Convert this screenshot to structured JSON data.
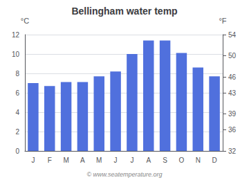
{
  "chart_data": {
    "type": "bar",
    "title": "Bellingham water temp",
    "categories": [
      "J",
      "F",
      "M",
      "A",
      "M",
      "J",
      "J",
      "A",
      "S",
      "O",
      "N",
      "D"
    ],
    "values": [
      7.0,
      6.7,
      7.1,
      7.1,
      7.7,
      8.2,
      10.0,
      11.4,
      11.4,
      10.1,
      8.6,
      7.7
    ],
    "ylabel": "°C",
    "y2label": "°F",
    "ylim": [
      0,
      12
    ],
    "yticks": [
      0,
      2,
      4,
      6,
      8,
      10,
      12
    ],
    "y2lim": [
      32,
      54
    ],
    "y2ticks": [
      32,
      36,
      39,
      43,
      46,
      50,
      54
    ],
    "grid": true,
    "annotations": [
      "© www.seatemperature.org"
    ]
  }
}
